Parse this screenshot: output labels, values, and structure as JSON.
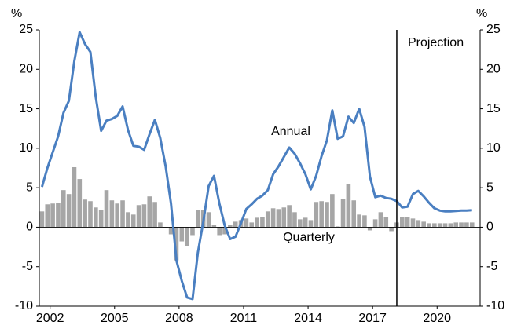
{
  "chart_data": {
    "type": "bar_line",
    "ylabel": "%",
    "y2label": "%",
    "x": [
      2001.625,
      2001.875,
      2002.125,
      2002.375,
      2002.625,
      2002.875,
      2003.125,
      2003.375,
      2003.625,
      2003.875,
      2004.125,
      2004.375,
      2004.625,
      2004.875,
      2005.125,
      2005.375,
      2005.625,
      2005.875,
      2006.125,
      2006.375,
      2006.625,
      2006.875,
      2007.125,
      2007.375,
      2007.625,
      2007.875,
      2008.125,
      2008.375,
      2008.625,
      2008.875,
      2009.125,
      2009.375,
      2009.625,
      2009.875,
      2010.125,
      2010.375,
      2010.625,
      2010.875,
      2011.125,
      2011.375,
      2011.625,
      2011.875,
      2012.125,
      2012.375,
      2012.625,
      2012.875,
      2013.125,
      2013.375,
      2013.625,
      2013.875,
      2014.125,
      2014.375,
      2014.625,
      2014.875,
      2015.125,
      2015.375,
      2015.625,
      2015.875,
      2016.125,
      2016.375,
      2016.625,
      2016.875,
      2017.125,
      2017.375,
      2017.625,
      2017.875,
      2018.125,
      2018.375,
      2018.625,
      2018.875,
      2019.125,
      2019.375,
      2019.625,
      2019.875,
      2020.125,
      2020.375,
      2020.625,
      2020.875,
      2021.125,
      2021.375,
      2021.625
    ],
    "series": [
      {
        "name": "Quarterly",
        "kind": "bar",
        "color": "#a6a6a6",
        "values": [
          2.0,
          2.9,
          3.0,
          3.1,
          4.7,
          4.2,
          7.6,
          6.1,
          3.5,
          3.3,
          2.5,
          2.2,
          4.7,
          3.4,
          3.0,
          3.4,
          1.9,
          1.6,
          2.8,
          2.9,
          3.9,
          3.2,
          0.6,
          0.0,
          -0.9,
          -4.2,
          -1.8,
          -2.4,
          -1.0,
          2.2,
          2.2,
          1.9,
          0.3,
          -1.0,
          -0.9,
          0.3,
          0.7,
          0.9,
          1.1,
          0.6,
          1.2,
          1.3,
          2.0,
          2.4,
          2.3,
          2.5,
          2.8,
          1.9,
          1.0,
          1.2,
          0.9,
          3.2,
          3.3,
          3.2,
          4.2,
          0.1,
          3.6,
          5.5,
          3.4,
          1.6,
          1.5,
          -0.4,
          1.0,
          1.9,
          1.3,
          -0.5,
          0.6,
          1.3,
          1.3,
          1.1,
          0.9,
          0.7,
          0.5,
          0.5,
          0.5,
          0.5,
          0.5,
          0.6,
          0.6,
          0.6,
          0.6
        ]
      },
      {
        "name": "Annual",
        "kind": "line",
        "color": "#4a7fc1",
        "values": [
          5.1,
          7.5,
          9.5,
          11.5,
          14.5,
          16.0,
          21.0,
          24.7,
          23.2,
          22.2,
          16.5,
          12.2,
          13.5,
          13.7,
          14.1,
          15.3,
          12.3,
          10.3,
          10.2,
          9.8,
          11.8,
          13.6,
          11.3,
          7.7,
          3.0,
          -4.2,
          -6.8,
          -8.9,
          -9.1,
          -3.2,
          0.7,
          5.2,
          6.5,
          3.0,
          0.2,
          -1.5,
          -1.2,
          0.5,
          2.3,
          2.9,
          3.6,
          4.0,
          4.7,
          6.7,
          7.7,
          8.9,
          10.1,
          9.3,
          8.1,
          6.7,
          4.8,
          6.5,
          9.0,
          11.0,
          14.8,
          11.2,
          11.5,
          14.0,
          13.2,
          15.0,
          12.7,
          6.4,
          3.8,
          4.0,
          3.7,
          3.6,
          3.3,
          2.5,
          2.6,
          4.2,
          4.6,
          3.9,
          3.1,
          2.4,
          2.1,
          2.0,
          2.0,
          2.05,
          2.1,
          2.1,
          2.15
        ]
      }
    ],
    "xlim": [
      2001.5,
      2022
    ],
    "xticks": [
      2002,
      2005,
      2008,
      2011,
      2014,
      2017,
      2020
    ],
    "ylim": [
      -10,
      25
    ],
    "yticks": [
      -10,
      -5,
      0,
      5,
      10,
      15,
      20,
      25
    ],
    "y2lim": [
      -10,
      25
    ],
    "y2ticks": [
      -10,
      -5,
      0,
      5,
      10,
      15,
      20,
      25
    ],
    "projection_x": 2018.125,
    "projection_label": "Projection"
  }
}
